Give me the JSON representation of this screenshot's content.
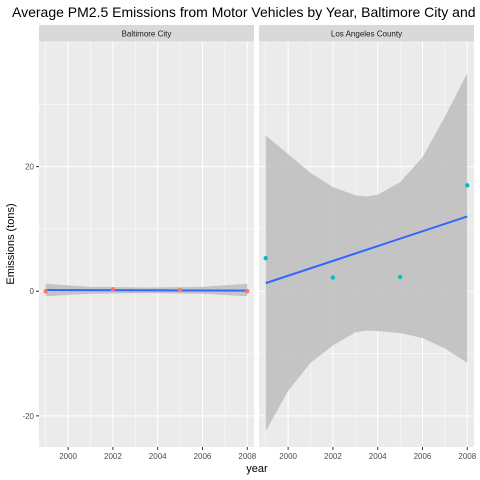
{
  "chart_data": {
    "type": "scatter",
    "title": "Average PM2.5 Emissions from Motor Vehicles by Year, Baltimore City and",
    "xlabel": "year",
    "ylabel": "Emissions (tons)",
    "xlim": [
      1998.7,
      2008.3
    ],
    "ylim": [
      -25,
      40
    ],
    "x_ticks": [
      2000,
      2002,
      2004,
      2006,
      2008
    ],
    "y_ticks": [
      -20,
      0,
      20
    ],
    "grid": true,
    "colors": {
      "panel_bg": "#ebebeb",
      "strip_bg": "#d9d9d9",
      "grid_major": "#ffffff",
      "regression_line": "#3366ff",
      "confidence_band": "#bdbdbd",
      "baltimore_points": "#f8766d",
      "la_points": "#00bfc4"
    },
    "panels": [
      {
        "strip_label": "Baltimore City",
        "point_color": "#f8766d",
        "points": [
          {
            "x": 1999,
            "y": 0.0
          },
          {
            "x": 2002,
            "y": 0.3
          },
          {
            "x": 2005,
            "y": 0.2
          },
          {
            "x": 2008,
            "y": 0.0
          }
        ],
        "fit": {
          "x": [
            1999,
            2008
          ],
          "y": [
            0.2,
            0.1
          ]
        },
        "band": {
          "x": [
            1999,
            2001,
            2003.5,
            2006,
            2008
          ],
          "lower": [
            -0.8,
            -0.4,
            -0.3,
            -0.4,
            -0.8
          ],
          "upper": [
            1.2,
            0.7,
            0.6,
            0.7,
            1.2
          ]
        }
      },
      {
        "strip_label": "Los Angeles County",
        "point_color": "#00bfc4",
        "points": [
          {
            "x": 1999,
            "y": 5.3
          },
          {
            "x": 2002,
            "y": 2.2
          },
          {
            "x": 2005,
            "y": 2.3
          },
          {
            "x": 2008,
            "y": 17.0
          }
        ],
        "fit": {
          "x": [
            1999,
            2008
          ],
          "y": [
            1.3,
            12.0
          ]
        },
        "band": {
          "x": [
            1999,
            2000,
            2001,
            2002,
            2003,
            2003.5,
            2004,
            2005,
            2006,
            2007,
            2008
          ],
          "upper": [
            25,
            22,
            19,
            16.7,
            15.4,
            15.2,
            15.5,
            17.5,
            21.5,
            28,
            35
          ],
          "lower": [
            -22.5,
            -16,
            -11.5,
            -8.7,
            -6.6,
            -6.3,
            -6.4,
            -6.7,
            -7.5,
            -9.2,
            -11.5
          ]
        }
      }
    ]
  }
}
